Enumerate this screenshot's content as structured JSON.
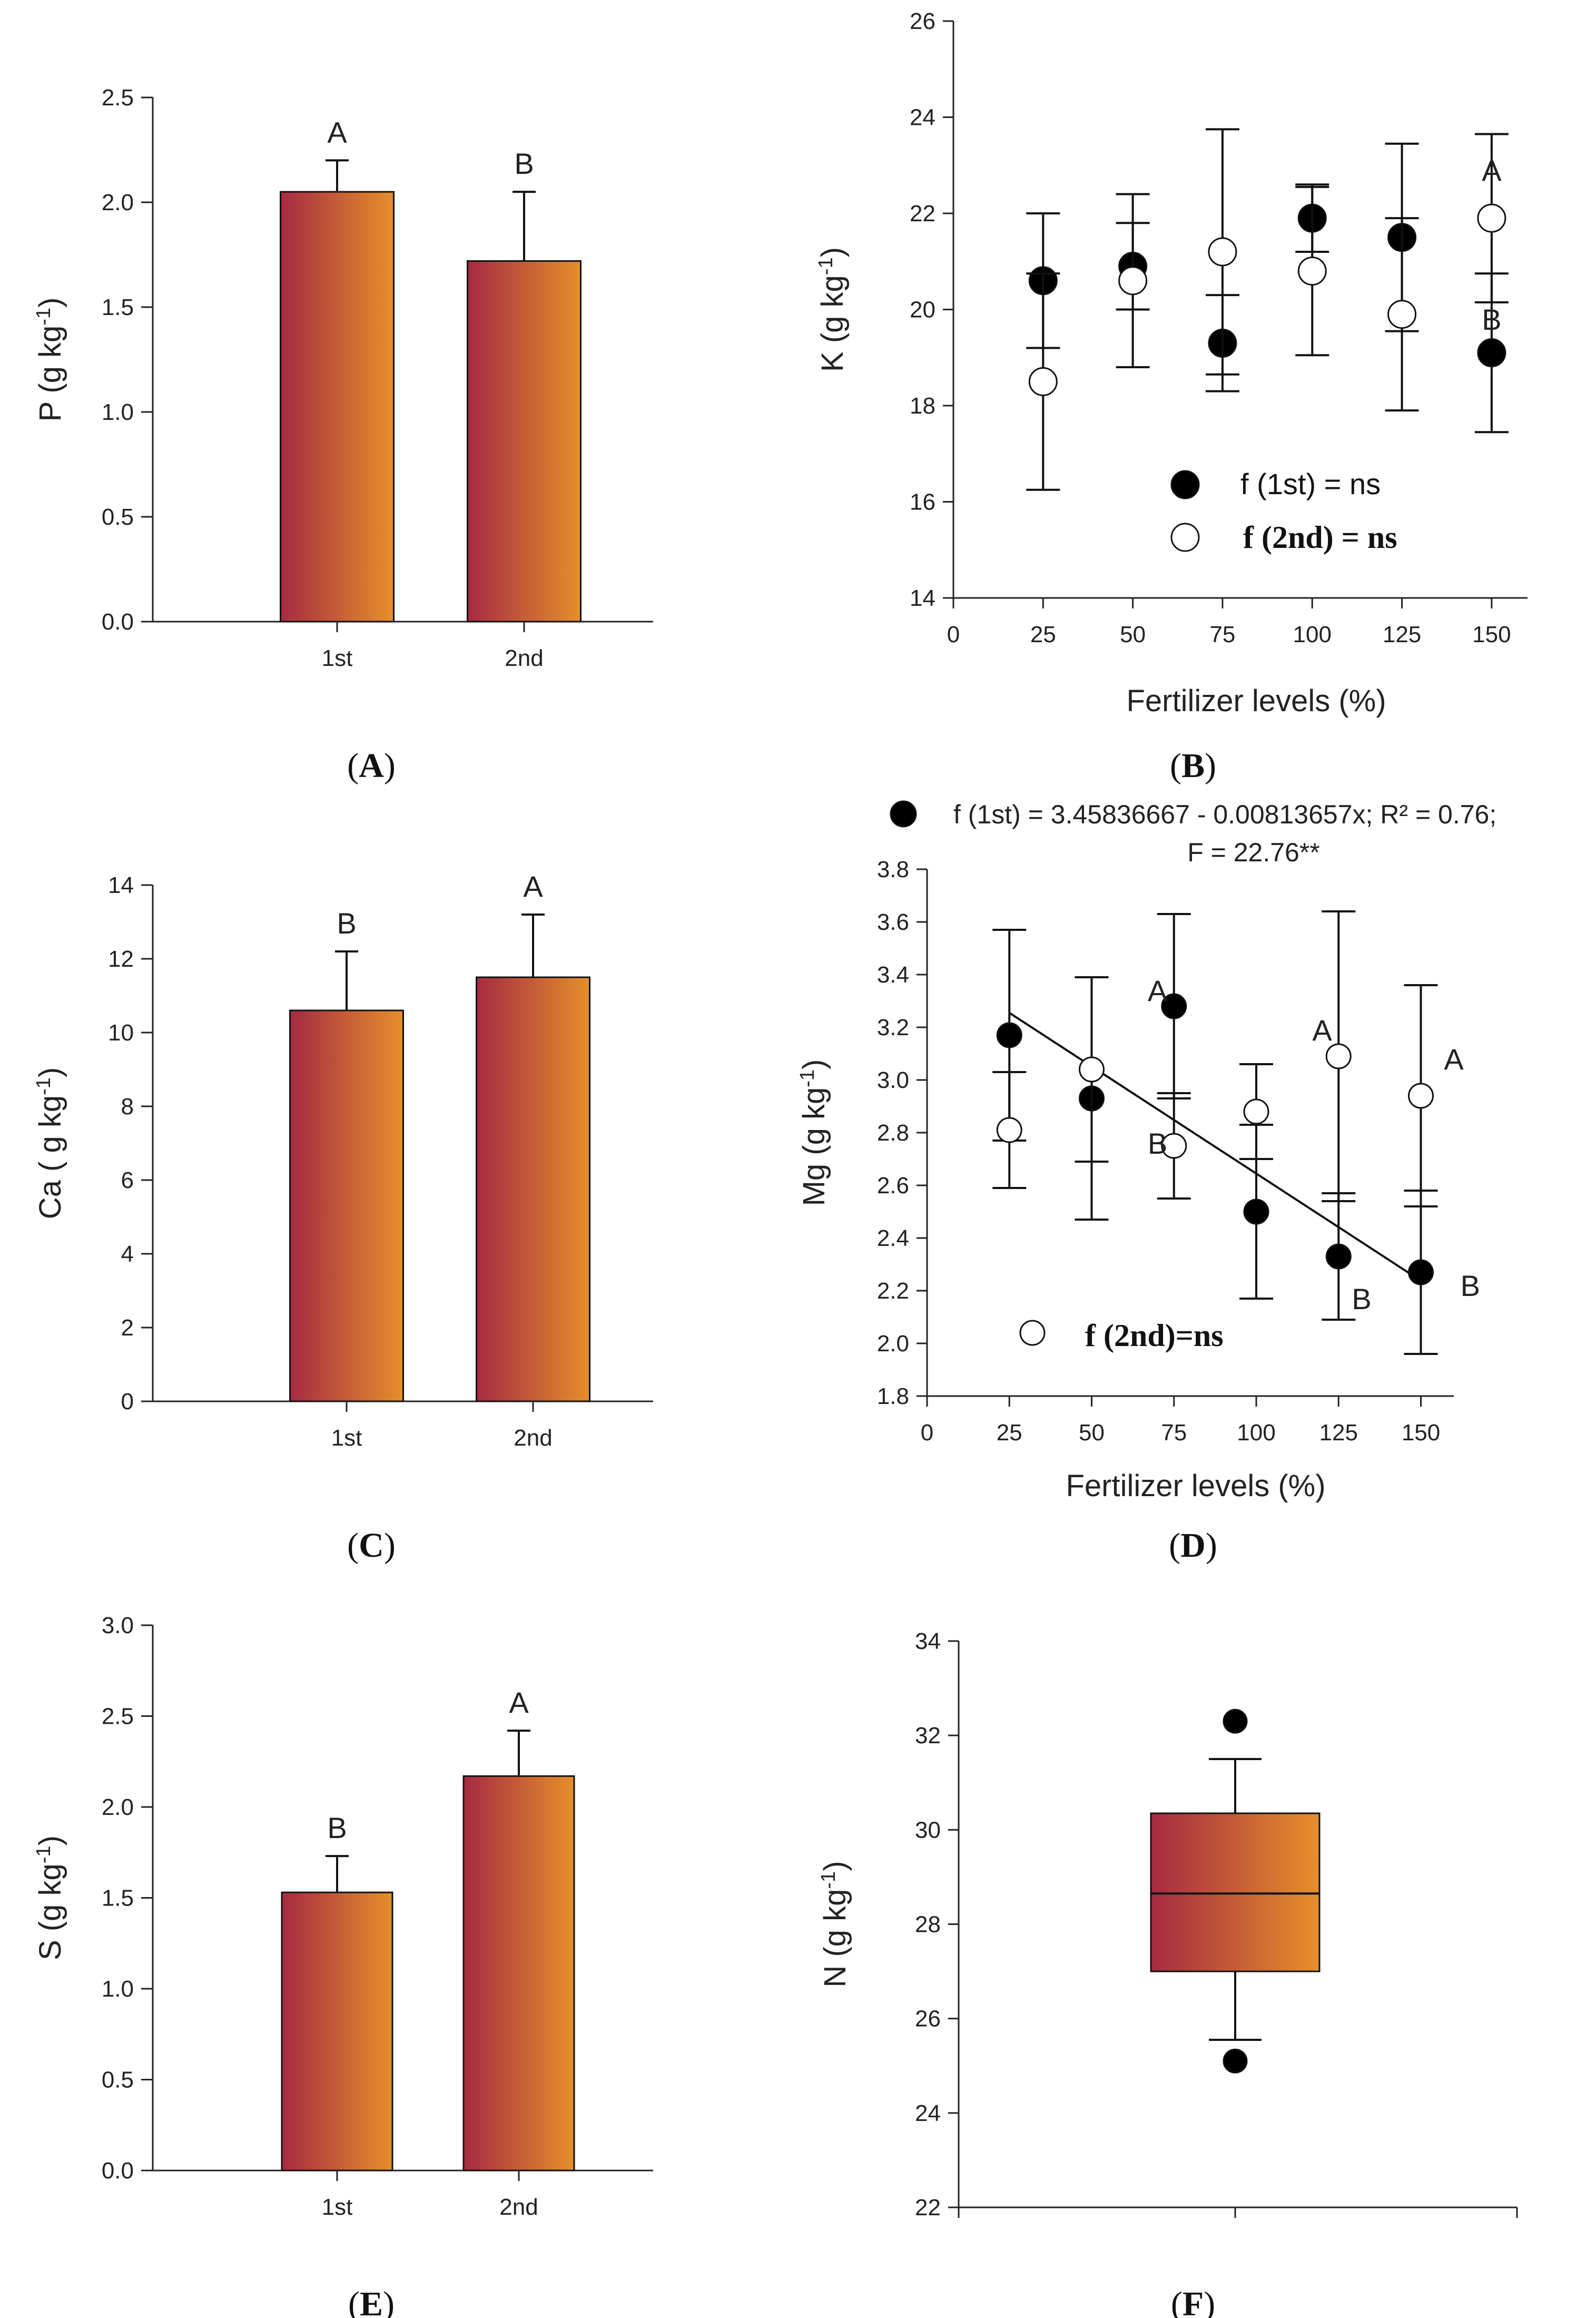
{
  "colors": {
    "bar_start": "#a62a42",
    "bar_end": "#e58f2b",
    "marker_1st": "#000000",
    "marker_2nd": "#ffffff",
    "axis": "#222222"
  },
  "chart_data": [
    {
      "panel": "A",
      "type": "bar",
      "caption": "A",
      "categories": [
        "1st",
        "2nd"
      ],
      "values": [
        2.05,
        1.72
      ],
      "errors": [
        0.15,
        0.33
      ],
      "letters": [
        "A",
        "B"
      ],
      "ylabel": "P (g kg",
      "ylabel_sup": "-1",
      "ylabel_end": ")",
      "ylim": [
        0,
        2.5
      ],
      "yticks": [
        0.0,
        0.5,
        1.0,
        1.5,
        2.0,
        2.5
      ],
      "ytick_labels": [
        "0.0",
        "0.5",
        "1.0",
        "1.5",
        "2.0",
        "2.5"
      ]
    },
    {
      "panel": "B",
      "type": "scatter",
      "caption": "B",
      "x": [
        25,
        50,
        75,
        100,
        125,
        150
      ],
      "series": [
        {
          "name": "f (1st) = ns",
          "marker": "filled",
          "y": [
            20.6,
            20.9,
            19.3,
            21.9,
            21.5,
            19.1
          ],
          "err": [
            1.4,
            0.9,
            1.0,
            0.7,
            1.95,
            1.65
          ]
        },
        {
          "name": "f (2nd) = ns",
          "marker": "open",
          "y": [
            18.5,
            20.6,
            21.2,
            20.8,
            19.9,
            21.9
          ],
          "err": [
            2.25,
            1.8,
            2.55,
            1.75,
            2.0,
            1.75
          ]
        }
      ],
      "letters": [
        {
          "text": "A",
          "x": 150,
          "y": 22.9
        },
        {
          "text": "B",
          "x": 150,
          "y": 19.8
        }
      ],
      "xlabel": "Fertilizer levels (%)",
      "ylabel": "K (g kg",
      "ylabel_sup": "-1",
      "ylabel_end": ")",
      "xlim": [
        0,
        160
      ],
      "xticks": [
        0,
        25,
        50,
        75,
        100,
        125,
        150
      ],
      "ylim": [
        14,
        26
      ],
      "yticks": [
        14,
        16,
        18,
        20,
        22,
        24,
        26
      ]
    },
    {
      "panel": "C",
      "type": "bar",
      "caption": "C",
      "categories": [
        "1st",
        "2nd"
      ],
      "values": [
        10.6,
        11.5
      ],
      "errors": [
        1.6,
        1.7
      ],
      "letters": [
        "B",
        "A"
      ],
      "ylabel": "Ca ( g kg",
      "ylabel_sup": "-1",
      "ylabel_end": ")",
      "ylim": [
        0,
        14
      ],
      "yticks": [
        0,
        2,
        4,
        6,
        8,
        10,
        12,
        14
      ],
      "ytick_labels": [
        "0",
        "2",
        "4",
        "6",
        "8",
        "10",
        "12",
        "14"
      ]
    },
    {
      "panel": "D",
      "type": "scatter",
      "caption": "D",
      "x": [
        25,
        50,
        75,
        100,
        125,
        150
      ],
      "series": [
        {
          "name": "f (1st) = 3.45836667 - 0.00813657x; R² = 0.76;",
          "name_line2": "F = 22.76**",
          "marker": "filled",
          "y": [
            3.17,
            2.93,
            3.28,
            2.5,
            2.33,
            2.27
          ],
          "err": [
            0.4,
            0.46,
            0.35,
            0.33,
            0.24,
            0.31
          ]
        },
        {
          "name": "f (2nd)=ns",
          "marker": "open",
          "y": [
            2.81,
            3.04,
            2.75,
            2.88,
            3.09,
            2.94
          ],
          "err": [
            0.22,
            0.35,
            0.2,
            0.18,
            0.55,
            0.42
          ]
        }
      ],
      "fit_line": {
        "x": [
          25,
          150
        ],
        "intercept": 3.45836667,
        "slope": -0.00813657
      },
      "letters": [
        {
          "text": "A",
          "x": 70,
          "y": 3.34
        },
        {
          "text": "B",
          "x": 70,
          "y": 2.76
        },
        {
          "text": "A",
          "x": 120,
          "y": 3.19
        },
        {
          "text": "B",
          "x": 132,
          "y": 2.17
        },
        {
          "text": "A",
          "x": 160,
          "y": 3.08
        },
        {
          "text": "B",
          "x": 165,
          "y": 2.22
        }
      ],
      "xlabel": "Fertilizer levels (%)",
      "ylabel": "Mg (g kg",
      "ylabel_sup": "-1",
      "ylabel_end": ")",
      "xlim": [
        0,
        160
      ],
      "xticks": [
        0,
        25,
        50,
        75,
        100,
        125,
        150
      ],
      "ylim": [
        1.8,
        3.8
      ],
      "yticks": [
        1.8,
        2.0,
        2.2,
        2.4,
        2.6,
        2.8,
        3.0,
        3.2,
        3.4,
        3.6,
        3.8
      ],
      "ytick_labels": [
        "1.8",
        "2.0",
        "2.2",
        "2.4",
        "2.6",
        "2.8",
        "3.0",
        "3.2",
        "3.4",
        "3.6",
        "3.8"
      ]
    },
    {
      "panel": "E",
      "type": "bar",
      "caption": "E",
      "categories": [
        "1st",
        "2nd"
      ],
      "values": [
        1.53,
        2.17
      ],
      "errors": [
        0.2,
        0.25
      ],
      "letters": [
        "B",
        "A"
      ],
      "ylabel": "S (g kg",
      "ylabel_sup": "-1",
      "ylabel_end": ")",
      "ylim": [
        0,
        3
      ],
      "yticks": [
        0.0,
        0.5,
        1.0,
        1.5,
        2.0,
        2.5,
        3.0
      ],
      "ytick_labels": [
        "0.0",
        "0.5",
        "1.0",
        "1.5",
        "2.0",
        "2.5",
        "3.0"
      ]
    },
    {
      "panel": "F",
      "type": "box",
      "caption": "F",
      "q1": 27.0,
      "median": 28.65,
      "q3": 30.35,
      "whisker_low": 25.55,
      "whisker_high": 31.5,
      "outliers": [
        32.3,
        25.1
      ],
      "ylabel": "N (g kg",
      "ylabel_sup": "-1",
      "ylabel_end": ")",
      "ylim": [
        22,
        34
      ],
      "yticks": [
        22,
        24,
        26,
        28,
        30,
        32,
        34
      ]
    }
  ]
}
